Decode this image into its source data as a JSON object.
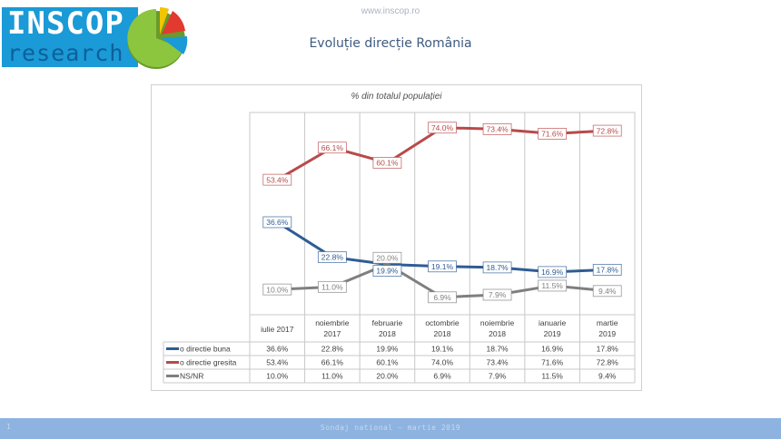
{
  "header": {
    "logo_top": "INSCOP",
    "logo_bottom": "research",
    "site_url": "www.inscop.ro",
    "page_title": "Evoluție direcție România"
  },
  "colors": {
    "buna": "#2f5d94",
    "gresita": "#b84a4a",
    "nsnr": "#7f7f7f",
    "footer": "#8eb3e0",
    "logo_blue": "#1a9ad6"
  },
  "chart_data": {
    "type": "line",
    "title": "% din totalul populației",
    "xlabel": "",
    "ylabel": "",
    "ylim": [
      0,
      80
    ],
    "grid": "vertical",
    "legend": "table-bottom-left",
    "categories": [
      [
        "iulie 2017"
      ],
      [
        "noiembrie",
        "2017"
      ],
      [
        "februarie",
        "2018"
      ],
      [
        "octombrie",
        "2018"
      ],
      [
        "noiembrie",
        "2018"
      ],
      [
        "ianuarie",
        "2019"
      ],
      [
        "martie",
        "2019"
      ]
    ],
    "series": [
      {
        "name": "o directie buna",
        "color": "#2f5d94",
        "values": [
          36.6,
          22.8,
          19.9,
          19.1,
          18.7,
          16.9,
          17.8
        ],
        "labels": [
          "36.6%",
          "22.8%",
          "19.9%",
          "19.1%",
          "18.7%",
          "16.9%",
          "17.8%"
        ]
      },
      {
        "name": "o directie gresita",
        "color": "#b84a4a",
        "values": [
          53.4,
          66.1,
          60.1,
          74.0,
          73.4,
          71.6,
          72.8
        ],
        "labels": [
          "53.4%",
          "66.1%",
          "60.1%",
          "74.0%",
          "73.4%",
          "71.6%",
          "72.8%"
        ]
      },
      {
        "name": "NS/NR",
        "color": "#7f7f7f",
        "values": [
          10.0,
          11.0,
          20.0,
          6.9,
          7.9,
          11.5,
          9.4
        ],
        "labels": [
          "10.0%",
          "11.0%",
          "20.0%",
          "6.9%",
          "7.9%",
          "11.5%",
          "9.4%"
        ]
      }
    ]
  },
  "footer": {
    "page_number": "1",
    "text": "Sondaj national – martie 2019"
  }
}
